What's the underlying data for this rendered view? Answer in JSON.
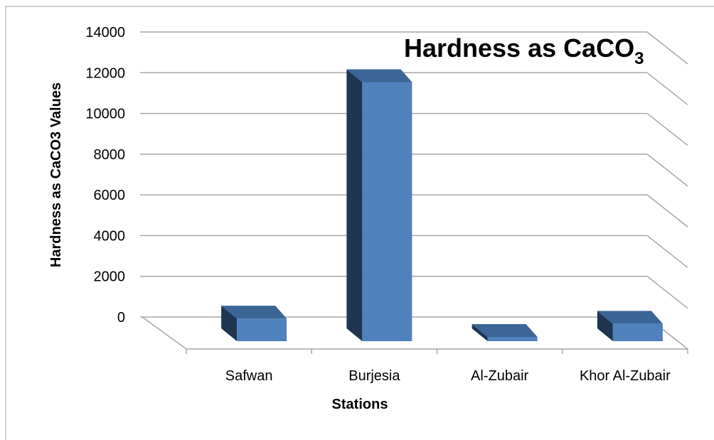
{
  "chart_data": {
    "type": "bar",
    "title_main": "Hardness as CaCO",
    "title_subscript": "3",
    "xlabel": "Stations",
    "ylabel": "Hardness as CaCO3 Values",
    "categories": [
      "Safwan",
      "Burjesia",
      "Al-Zubair",
      "Khor Al-Zubair"
    ],
    "values": [
      1100,
      12600,
      0,
      850
    ],
    "ylim": [
      0,
      14000
    ],
    "yticks": [
      0,
      2000,
      4000,
      6000,
      8000,
      10000,
      12000,
      14000
    ],
    "grid": true,
    "legend": "none",
    "style": "3d-column"
  },
  "colors": {
    "bar_front": "#4f81bd",
    "bar_top": "#3a6596",
    "bar_side": "#1f3552",
    "gridline": "#a6a6a6",
    "frame": "#a6a6a6"
  }
}
